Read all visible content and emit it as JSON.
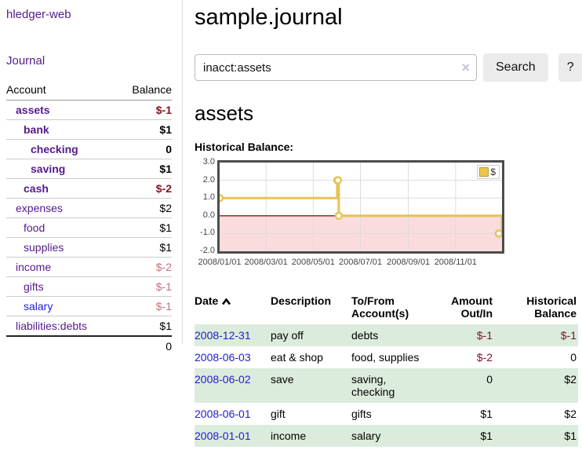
{
  "app": {
    "title": "hledger-web",
    "nav_journal": "Journal"
  },
  "sidebar": {
    "col_account": "Account",
    "col_balance": "Balance",
    "accounts": [
      {
        "name": "assets",
        "level": 1,
        "balance": "$-1",
        "bold": true,
        "neg": "neg-strong",
        "link": "purple"
      },
      {
        "name": "bank",
        "level": 2,
        "balance": "$1",
        "bold": true,
        "neg": "",
        "link": "purple"
      },
      {
        "name": "checking",
        "level": 3,
        "balance": "0",
        "bold": true,
        "neg": "",
        "link": "purple"
      },
      {
        "name": "saving",
        "level": 3,
        "balance": "$1",
        "bold": true,
        "neg": "",
        "link": "purple"
      },
      {
        "name": "cash",
        "level": 2,
        "balance": "$-2",
        "bold": true,
        "neg": "neg-strong",
        "link": "purple"
      },
      {
        "name": "expenses",
        "level": 1,
        "balance": "$2",
        "bold": false,
        "neg": "",
        "link": "purple"
      },
      {
        "name": "food",
        "level": 2,
        "balance": "$1",
        "bold": false,
        "neg": "",
        "link": "purple"
      },
      {
        "name": "supplies",
        "level": 2,
        "balance": "$1",
        "bold": false,
        "neg": "",
        "link": "purple"
      },
      {
        "name": "income",
        "level": 1,
        "balance": "$-2",
        "bold": false,
        "neg": "neg-soft",
        "link": "purple"
      },
      {
        "name": "gifts",
        "level": 2,
        "balance": "$-1",
        "bold": false,
        "neg": "neg-soft",
        "link": "purple"
      },
      {
        "name": "salary",
        "level": 2,
        "balance": "$-1",
        "bold": false,
        "neg": "neg-soft",
        "link": "blue"
      },
      {
        "name": "liabilities:debts",
        "level": 1,
        "balance": "$1",
        "bold": false,
        "neg": "",
        "link": "purple"
      }
    ],
    "total": "0"
  },
  "main": {
    "title": "sample.journal",
    "search": {
      "value": "inacct:assets",
      "clear_icon": "×",
      "button": "Search",
      "help": "?"
    },
    "account_heading": "assets",
    "chart_label": "Historical Balance:"
  },
  "chart_data": {
    "type": "line",
    "step": true,
    "title": "Historical Balance:",
    "series": [
      {
        "name": "$",
        "points": [
          [
            "2008-01-01",
            1
          ],
          [
            "2008-06-01",
            2
          ],
          [
            "2008-06-02",
            2
          ],
          [
            "2008-06-03",
            0
          ],
          [
            "2008-12-31",
            -1
          ]
        ]
      }
    ],
    "xrange": [
      "2008-01-01",
      "2008-12-31"
    ],
    "ylim": [
      -2,
      3
    ],
    "yticks": [
      "3.0",
      "2.0",
      "1.0",
      "0.0",
      "-1.0",
      "-2.0"
    ],
    "xticks": [
      "2008/01/01",
      "2008/03/01",
      "2008/05/01",
      "2008/07/01",
      "2008/09/01",
      "2008/11/01"
    ],
    "grid": true,
    "legend": {
      "position": "top-right",
      "label": "$"
    },
    "colors": {
      "line": "#e6c353",
      "marker_fill": "#ffffff",
      "negative_fill": "#fbdcdc",
      "zero_line": "#8b1a1a",
      "gridline": "#dcdcdc",
      "border": "#4c4c4c"
    }
  },
  "register": {
    "headers": [
      {
        "label": "Date",
        "sort": "asc",
        "align": "left"
      },
      {
        "label": "Description",
        "align": "left"
      },
      {
        "label": "To/From Account(s)",
        "align": "left"
      },
      {
        "label": "Amount Out/In",
        "align": "right"
      },
      {
        "label": "Historical Balance",
        "align": "right"
      }
    ],
    "rows": [
      {
        "date": "2008-12-31",
        "description": "pay off",
        "accounts": "debts",
        "amount": "$-1",
        "amount_neg": true,
        "balance": "$-1",
        "balance_neg": true
      },
      {
        "date": "2008-06-03",
        "description": "eat & shop",
        "accounts": "food, supplies",
        "amount": "$-2",
        "amount_neg": true,
        "balance": "0",
        "balance_neg": false
      },
      {
        "date": "2008-06-02",
        "description": "save",
        "accounts": "saving, checking",
        "amount": "0",
        "amount_neg": false,
        "balance": "$2",
        "balance_neg": false
      },
      {
        "date": "2008-06-01",
        "description": "gift",
        "accounts": "gifts",
        "amount": "$1",
        "amount_neg": false,
        "balance": "$2",
        "balance_neg": false
      },
      {
        "date": "2008-01-01",
        "description": "income",
        "accounts": "salary",
        "amount": "$1",
        "amount_neg": false,
        "balance": "$1",
        "balance_neg": false
      }
    ]
  },
  "colors": {
    "link_purple": "#551a8b",
    "link_blue": "#1d1dcf",
    "date_blue": "#2020cc",
    "negative_strong": "#7f1420",
    "negative_soft": "#c4717d",
    "row_green": "#dcecdc",
    "button_gray": "#ebebeb"
  }
}
